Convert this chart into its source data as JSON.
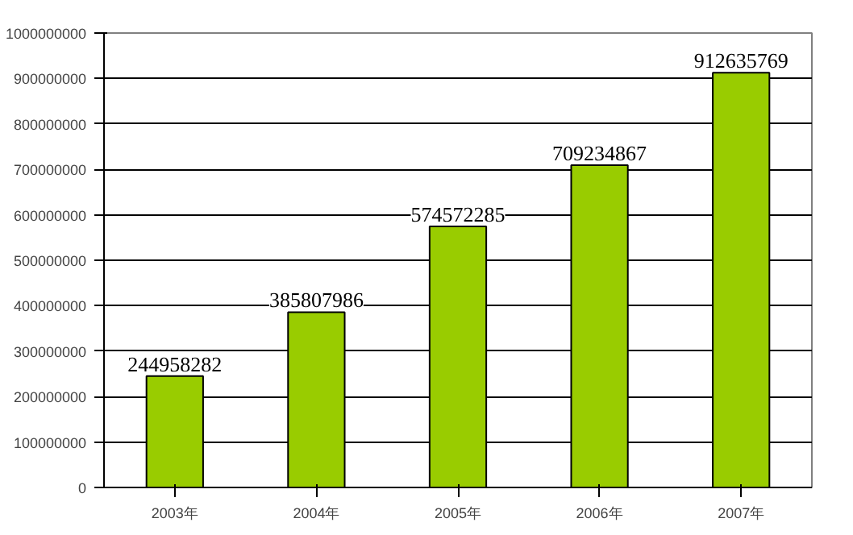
{
  "chart_data": {
    "type": "bar",
    "categories": [
      "2003年",
      "2004年",
      "2005年",
      "2006年",
      "2007年"
    ],
    "values": [
      244958282,
      385807986,
      574572285,
      709234867,
      912635769
    ],
    "color": "#99cc00",
    "ylim": [
      0,
      1000000000
    ],
    "yticks": [
      0,
      100000000,
      200000000,
      300000000,
      400000000,
      500000000,
      600000000,
      700000000,
      800000000,
      900000000,
      1000000000
    ],
    "grid": "y",
    "data_labels": true
  }
}
